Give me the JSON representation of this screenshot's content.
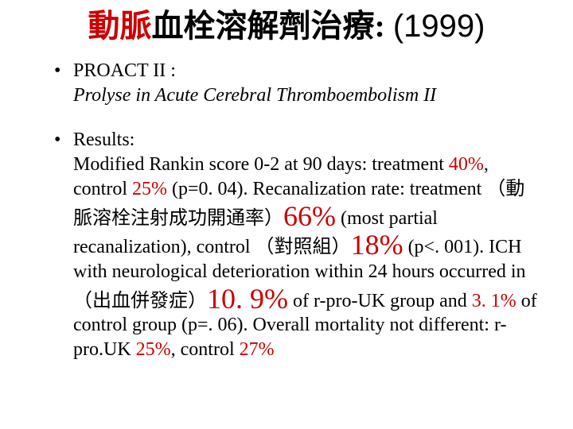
{
  "colors": {
    "background": "#ffffff",
    "text": "#000000",
    "accent_red": "#cc0000"
  },
  "typography": {
    "body_font": "Times New Roman / PMingLiU, serif",
    "body_size_pt": 24,
    "title_size_pt": 40,
    "big_number_size_pt": 36
  },
  "title": {
    "red_part": "動脈",
    "rest_cn": "血栓溶解劑治療: ",
    "year": "(1999)"
  },
  "bullet1": {
    "line1": "PROACT II :",
    "line2_italic": "Prolyse in Acute Cerebral Thromboembolism II"
  },
  "bullet2": {
    "t1": "Results:",
    "t2a": "Modified Rankin score 0-2 at 90 days: treatment ",
    "t2b_red": "40%",
    "t2c": ", control ",
    "t2d_red": "25%",
    "t2e": " (p=0. 04). Recanalization rate: treatment （動脈溶栓注射成功開通率）",
    "big1_red": "66%",
    "t3a": " (most partial recanalization), control （對照組）",
    "big2_red": "18%",
    "t3b": " (p<. 001). ICH with neurological deterioration within 24 hours occurred in （出血併發症）",
    "big3_red": "10. 9%",
    "t4a": " of r-pro-UK group and ",
    "t4b_red": "3. 1%",
    "t4c": " of control group (p=. 06). Overall mortality not different: r-pro.UK ",
    "t4d_red": "25%",
    "t4e": ", control ",
    "t4f_red": "27%"
  }
}
